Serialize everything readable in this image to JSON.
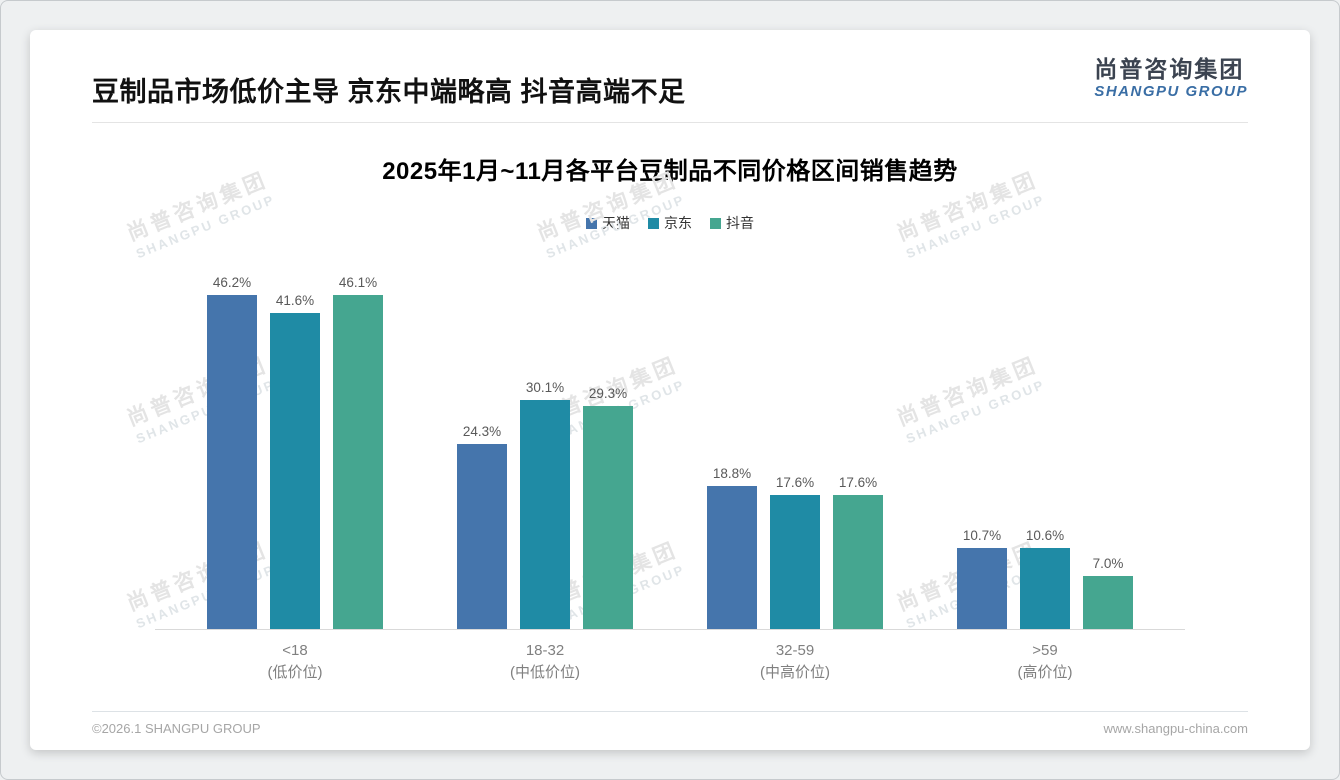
{
  "header": {
    "title": "豆制品市场低价主导 京东中端略高 抖音高端不足",
    "logo_cn": "尚普咨询集团",
    "logo_en": "SHANGPU GROUP"
  },
  "watermark": {
    "cn": "尚普咨询集团",
    "en": "SHANGPU GROUP"
  },
  "footer": {
    "copyright": "©2026.1 SHANGPU GROUP",
    "website": "www.shangpu-china.com"
  },
  "chart_data": {
    "type": "bar",
    "title": "2025年1月~11月各平台豆制品不同价格区间销售趋势",
    "categories": [
      {
        "range": "<18",
        "tier": "(低价位)"
      },
      {
        "range": "18-32",
        "tier": "(中低价位)"
      },
      {
        "range": "32-59",
        "tier": "(中高价位)"
      },
      {
        "range": ">59",
        "tier": "(高价位)"
      }
    ],
    "series": [
      {
        "name": "天猫",
        "color": "#4575ac",
        "values": [
          46.2,
          24.3,
          18.8,
          10.7
        ]
      },
      {
        "name": "京东",
        "color": "#1f8ba5",
        "values": [
          41.6,
          30.1,
          17.6,
          10.6
        ]
      },
      {
        "name": "抖音",
        "color": "#45a690",
        "values": [
          46.1,
          29.3,
          17.6,
          7.0
        ]
      }
    ],
    "value_suffix": "%",
    "ylim": [
      0,
      50
    ],
    "grid": false,
    "legend_position": "top-center",
    "data_labels": true,
    "baseline_color": "#d9d9d9"
  }
}
